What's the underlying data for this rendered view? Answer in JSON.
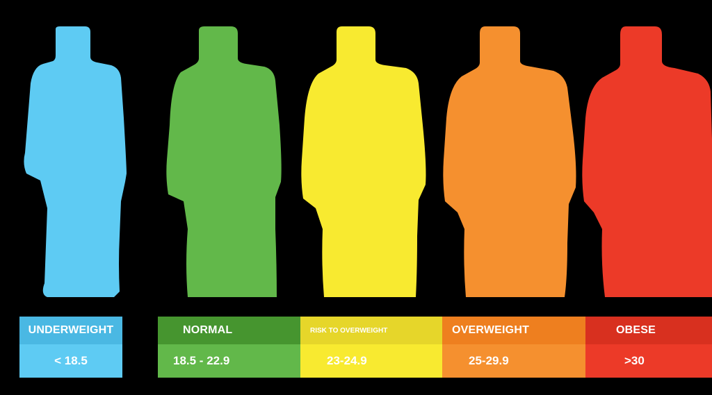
{
  "categories": [
    {
      "id": "underweight",
      "label": "UNDERWEIGHT",
      "range": "< 18.5",
      "color": "#5ecbf3",
      "header_color": "#4ab8e3",
      "icon": "person-silhouette-icon"
    },
    {
      "id": "normal",
      "label": "NORMAL",
      "range": "18.5 - 22.9",
      "color": "#62b84a",
      "header_color": "#46952f",
      "icon": "person-silhouette-icon"
    },
    {
      "id": "risk-to-overweight",
      "label": "RISK TO OVERWEIGHT",
      "range": "23-24.9",
      "color": "#f8ea30",
      "header_color": "#e6d62a",
      "icon": "person-silhouette-icon"
    },
    {
      "id": "overweight",
      "label": "OVERWEIGHT",
      "range": "25-29.9",
      "color": "#f5902f",
      "header_color": "#ee7f1f",
      "icon": "person-silhouette-icon"
    },
    {
      "id": "obese",
      "label": "OBESE",
      "range": ">30",
      "color": "#ec3a28",
      "header_color": "#d8301f",
      "icon": "person-silhouette-icon"
    }
  ]
}
